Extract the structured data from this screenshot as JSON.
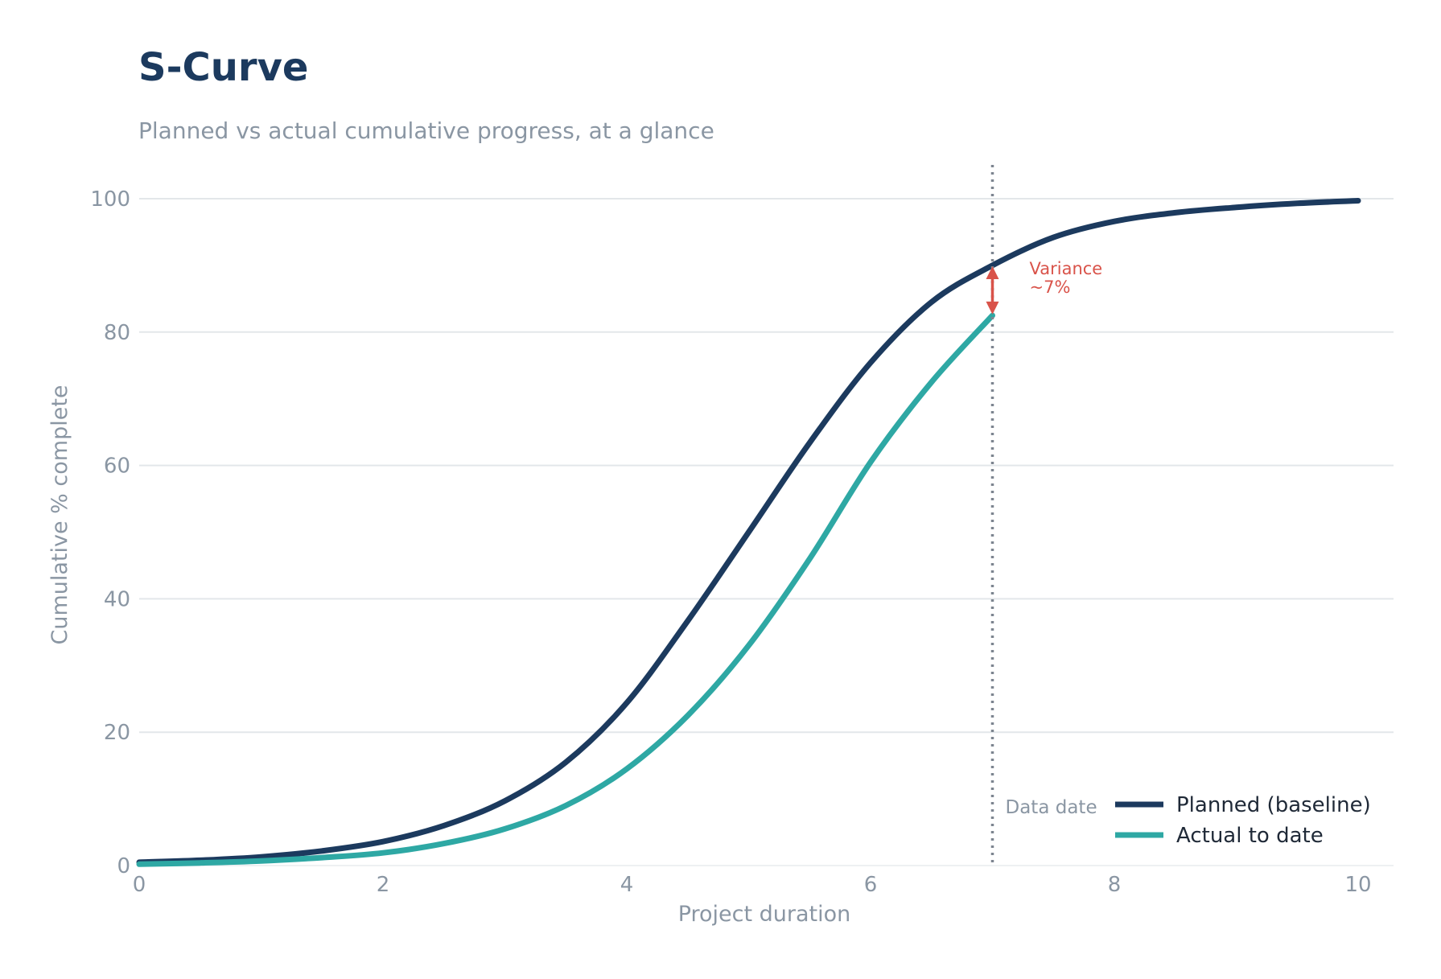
{
  "chart_data": {
    "type": "line",
    "title": "S-Curve",
    "subtitle": "Planned vs actual cumulative progress, at a glance",
    "xlabel": "Project duration",
    "ylabel": "Cumulative % complete",
    "xlim": [
      0,
      10.3
    ],
    "ylim": [
      0,
      105
    ],
    "xticks": [
      "0",
      "2",
      "4",
      "6",
      "8",
      "10"
    ],
    "yticks": [
      "0",
      "20",
      "40",
      "60",
      "80",
      "100"
    ],
    "grid": "horizontal",
    "legend_position": "bottom-right",
    "series": [
      {
        "name": "Planned (baseline)",
        "color": "#1c3a5e",
        "x": [
          0,
          0.5,
          1,
          1.5,
          2,
          2.5,
          3,
          3.5,
          4,
          4.5,
          5,
          5.5,
          6,
          6.5,
          7,
          7.5,
          8,
          8.5,
          9,
          9.5,
          10
        ],
        "y": [
          0.5,
          0.8,
          1.3,
          2.2,
          3.6,
          6.0,
          9.7,
          15.5,
          24.4,
          36.7,
          50.0,
          63.4,
          75.4,
          84.5,
          90.0,
          94.2,
          96.6,
          97.9,
          98.7,
          99.3,
          99.7
        ]
      },
      {
        "name": "Actual to date",
        "color": "#2ea8a4",
        "x": [
          0,
          0.5,
          1,
          1.5,
          2,
          2.5,
          3,
          3.5,
          4,
          4.5,
          5,
          5.5,
          6,
          6.5,
          7
        ],
        "y": [
          0.2,
          0.4,
          0.7,
          1.2,
          1.9,
          3.3,
          5.5,
          9.0,
          14.5,
          22.5,
          33.0,
          46.0,
          60.5,
          72.5,
          82.5
        ]
      }
    ],
    "data_date": {
      "x": 7,
      "label": "Data date"
    },
    "annotation": {
      "line1": "Variance",
      "line2": "~7%",
      "x": 7,
      "y_from": 83,
      "y_to": 89.5,
      "color": "#d9534a"
    }
  }
}
